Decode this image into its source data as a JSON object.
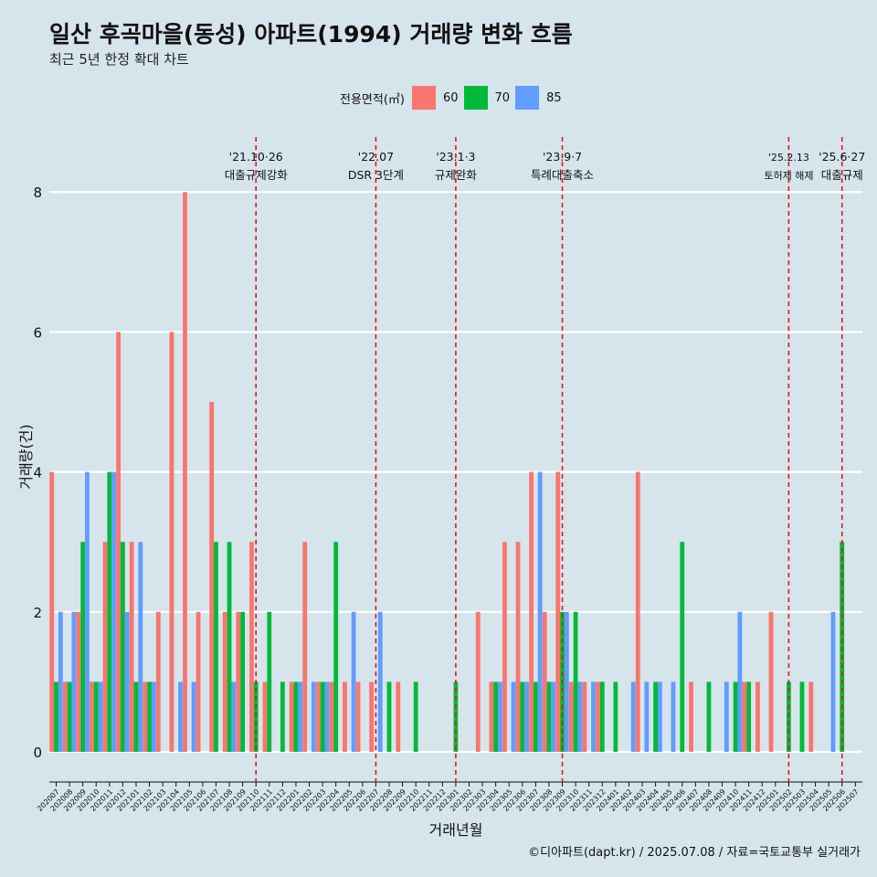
{
  "header": {
    "title": "일산 후곡마을(동성) 아파트(1994) 거래량 변화 흐름",
    "subtitle": "최근 5년 한정 확대 차트"
  },
  "legend": {
    "title": "전용면적(㎡)",
    "items": [
      {
        "label": "60",
        "color": "#f8766d"
      },
      {
        "label": "70",
        "color": "#00ba38"
      },
      {
        "label": "85",
        "color": "#619cff"
      }
    ]
  },
  "caption": "©디아파트(dapt.kr) / 2025.07.08 / 자료=국토교통부 실거래가",
  "chart_data": {
    "type": "bar",
    "xlabel": "거래년월",
    "ylabel": "거래량(건)",
    "ylim": [
      0,
      8
    ],
    "yticks": [
      0,
      2,
      4,
      6,
      8
    ],
    "categories": [
      "202007",
      "202008",
      "202009",
      "202010",
      "202011",
      "202012",
      "202101",
      "202102",
      "202103",
      "202104",
      "202105",
      "202106",
      "202107",
      "202108",
      "202109",
      "202110",
      "202111",
      "202112",
      "202201",
      "202202",
      "202203",
      "202204",
      "202205",
      "202206",
      "202207",
      "202208",
      "202209",
      "202210",
      "202211",
      "202212",
      "202301",
      "202302",
      "202303",
      "202304",
      "202305",
      "202306",
      "202307",
      "202308",
      "202309",
      "202310",
      "202311",
      "202312",
      "202401",
      "202402",
      "202403",
      "202404",
      "202405",
      "202406",
      "202407",
      "202408",
      "202409",
      "202410",
      "202411",
      "202412",
      "202501",
      "202502",
      "202503",
      "202504",
      "202505",
      "202506",
      "202507"
    ],
    "series": [
      {
        "name": "60",
        "values": [
          4,
          1,
          2,
          1,
          3,
          6,
          3,
          1,
          2,
          6,
          8,
          2,
          5,
          2,
          2,
          3,
          1,
          0,
          1,
          3,
          1,
          1,
          1,
          1,
          1,
          0,
          1,
          0,
          0,
          0,
          0,
          0,
          2,
          1,
          3,
          3,
          4,
          2,
          4,
          1,
          1,
          1,
          0,
          0,
          4,
          0,
          0,
          0,
          1,
          0,
          0,
          0,
          1,
          1,
          2,
          0,
          0,
          1,
          0,
          0,
          0
        ]
      },
      {
        "name": "70",
        "values": [
          1,
          1,
          3,
          1,
          4,
          3,
          1,
          1,
          0,
          0,
          0,
          0,
          3,
          3,
          2,
          1,
          2,
          1,
          1,
          0,
          1,
          3,
          0,
          0,
          0,
          1,
          0,
          1,
          0,
          0,
          1,
          0,
          0,
          1,
          0,
          1,
          1,
          1,
          2,
          2,
          0,
          1,
          1,
          0,
          0,
          1,
          0,
          3,
          0,
          1,
          0,
          1,
          1,
          0,
          0,
          1,
          1,
          0,
          0,
          3,
          0
        ]
      },
      {
        "name": "85",
        "values": [
          2,
          2,
          4,
          1,
          4,
          2,
          3,
          1,
          0,
          1,
          1,
          0,
          0,
          1,
          0,
          0,
          0,
          0,
          1,
          1,
          1,
          0,
          2,
          0,
          2,
          0,
          0,
          0,
          0,
          0,
          0,
          0,
          0,
          1,
          1,
          1,
          4,
          1,
          2,
          1,
          1,
          0,
          0,
          1,
          1,
          1,
          1,
          0,
          0,
          0,
          1,
          2,
          0,
          0,
          0,
          0,
          0,
          0,
          2,
          0,
          0
        ]
      }
    ],
    "annotations": [
      {
        "month": "202110",
        "date": "'21.10·26",
        "label": "대출규제강화"
      },
      {
        "month": "202207",
        "date": "'22.07",
        "label": "DSR 3단계"
      },
      {
        "month": "202301",
        "date": "'23.1·3",
        "label": "규제완화"
      },
      {
        "month": "202309",
        "date": "'23.9·7",
        "label": "특례대출축소"
      },
      {
        "month": "202502",
        "date": "'25.2.13",
        "label": "토허제 해제"
      },
      {
        "month": "202506",
        "date": "'25.6·27",
        "label": "대출규제"
      }
    ]
  }
}
